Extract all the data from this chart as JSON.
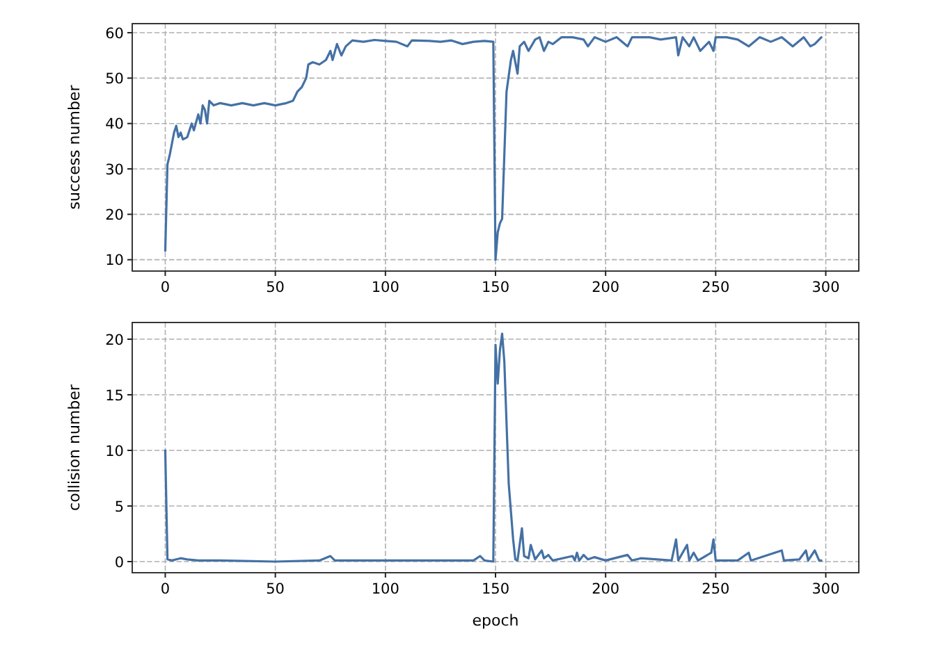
{
  "chart_data": [
    {
      "type": "line",
      "ylabel": "success number",
      "xlim": [
        -15,
        315
      ],
      "ylim": [
        7.5,
        62
      ],
      "xticks": [
        0,
        50,
        100,
        150,
        200,
        250,
        300
      ],
      "yticks": [
        10,
        20,
        30,
        40,
        50,
        60
      ],
      "grid": true,
      "line_style": "solid",
      "series": [
        {
          "color": "#4471a5",
          "x": [
            0,
            1,
            2,
            4,
            5,
            6,
            7,
            8,
            10,
            12,
            13,
            15,
            16,
            17,
            18,
            19,
            20,
            22,
            25,
            30,
            35,
            40,
            45,
            50,
            55,
            58,
            60,
            62,
            64,
            65,
            67,
            70,
            73,
            75,
            76,
            78,
            80,
            82,
            85,
            90,
            95,
            100,
            105,
            110,
            112,
            120,
            125,
            130,
            135,
            140,
            145,
            149,
            150,
            151,
            152,
            153,
            155,
            157,
            158,
            160,
            161,
            163,
            165,
            168,
            170,
            172,
            174,
            176,
            180,
            185,
            190,
            192,
            195,
            200,
            205,
            210,
            212,
            220,
            225,
            232,
            233,
            235,
            238,
            240,
            243,
            247,
            249,
            250,
            255,
            260,
            265,
            270,
            275,
            280,
            285,
            290,
            293,
            295,
            298
          ],
          "values": [
            12,
            31,
            33,
            38,
            39.5,
            37,
            38,
            36.5,
            37,
            40,
            38.5,
            42,
            40,
            44,
            43,
            40,
            45,
            44,
            44.5,
            44,
            44.5,
            44,
            44.5,
            44,
            44.5,
            45,
            47,
            48,
            50,
            53,
            53.5,
            53,
            54,
            56,
            54,
            57.5,
            55,
            57,
            58.3,
            58,
            58.4,
            58.2,
            58,
            57,
            58.3,
            58.2,
            58,
            58.3,
            57.5,
            58,
            58.2,
            58,
            10,
            16,
            18,
            19,
            47,
            54,
            56,
            51,
            57,
            58,
            56,
            58.5,
            59,
            56,
            58,
            57.5,
            59,
            59,
            58.5,
            57,
            59,
            58,
            59,
            57,
            59,
            59,
            58.5,
            59,
            55,
            59,
            57,
            59,
            56,
            58,
            56,
            59,
            59,
            58.5,
            57,
            59,
            58,
            59,
            57,
            59,
            57,
            57.5,
            59
          ]
        }
      ]
    },
    {
      "type": "line",
      "xlabel": "epoch",
      "ylabel": "collision number",
      "xlim": [
        -15,
        315
      ],
      "ylim": [
        -1,
        21.5
      ],
      "xticks": [
        0,
        50,
        100,
        150,
        200,
        250,
        300
      ],
      "yticks": [
        0,
        5,
        10,
        15,
        20
      ],
      "grid": true,
      "line_style": "solid",
      "series": [
        {
          "color": "#4471a5",
          "x": [
            0,
            1,
            3,
            5,
            7,
            10,
            15,
            25,
            50,
            70,
            75,
            77,
            100,
            125,
            140,
            143,
            145,
            149,
            150,
            151,
            152,
            153,
            154,
            156,
            158,
            159,
            160,
            162,
            163,
            165,
            166,
            168,
            171,
            172,
            174,
            176,
            185,
            186,
            187,
            188,
            190,
            192,
            195,
            200,
            210,
            212,
            216,
            230,
            232,
            233,
            237,
            238,
            240,
            242,
            248,
            249,
            250,
            260,
            265,
            266,
            280,
            281,
            288,
            291,
            292,
            295,
            297,
            298
          ],
          "values": [
            10,
            0.2,
            0.1,
            0.2,
            0.3,
            0.2,
            0.1,
            0.1,
            0,
            0.1,
            0.5,
            0.1,
            0.1,
            0.1,
            0.1,
            0.5,
            0.1,
            0,
            19.5,
            16,
            19,
            20.5,
            18,
            7,
            2,
            0.2,
            0.1,
            3,
            0.5,
            0.3,
            1.5,
            0.2,
            1,
            0.3,
            0.6,
            0.1,
            0.5,
            0.1,
            0.8,
            0.1,
            0.6,
            0.2,
            0.4,
            0.1,
            0.6,
            0.1,
            0.3,
            0.1,
            2,
            0.1,
            1.5,
            0.1,
            0.8,
            0.1,
            0.8,
            2,
            0.1,
            0.1,
            0.8,
            0.1,
            1,
            0.1,
            0.2,
            1,
            0.1,
            1,
            0.1,
            0.1
          ]
        }
      ]
    }
  ]
}
